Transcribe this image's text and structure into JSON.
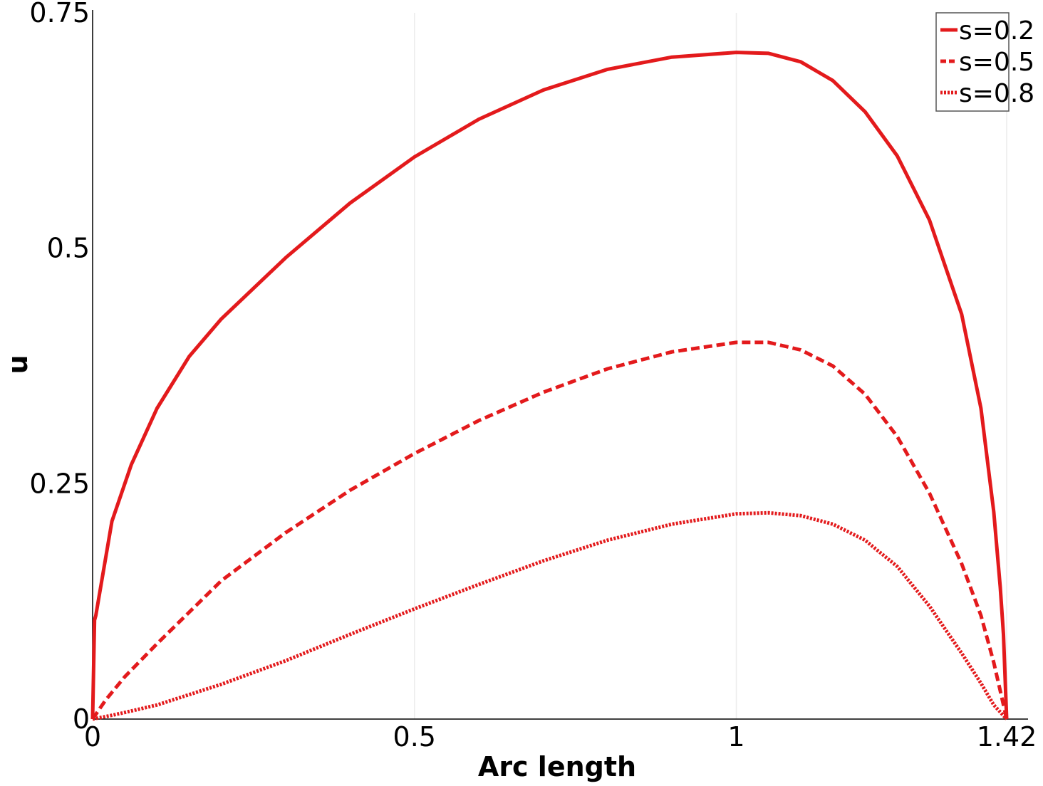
{
  "chart_data": {
    "type": "line",
    "xlabel": "Arc length",
    "ylabel": "u",
    "xlim": [
      0,
      1.42
    ],
    "ylim": [
      0,
      0.75
    ],
    "x_ticks": [
      {
        "value": 0,
        "label": "0"
      },
      {
        "value": 0.5,
        "label": "0.5"
      },
      {
        "value": 1,
        "label": "1"
      },
      {
        "value": 1.42,
        "label": "1.42"
      }
    ],
    "y_ticks": [
      {
        "value": 0,
        "label": "0"
      },
      {
        "value": 0.25,
        "label": "0.25"
      },
      {
        "value": 0.5,
        "label": "0.5"
      },
      {
        "value": 0.75,
        "label": "0.75"
      }
    ],
    "grid": "vertical-only",
    "legend_position": "top-right",
    "series": [
      {
        "name": "s=0.2",
        "style": "solid",
        "color": "#e31a1c",
        "x": [
          0,
          0.003,
          0.005,
          0.01,
          0.03,
          0.06,
          0.1,
          0.15,
          0.2,
          0.3,
          0.4,
          0.5,
          0.6,
          0.7,
          0.8,
          0.9,
          1.0,
          1.05,
          1.1,
          1.15,
          1.2,
          1.25,
          1.3,
          1.35,
          1.38,
          1.4,
          1.41,
          1.415,
          1.42
        ],
        "y": [
          0,
          0.105,
          0.11,
          0.13,
          0.21,
          0.27,
          0.33,
          0.385,
          0.425,
          0.49,
          0.548,
          0.597,
          0.637,
          0.668,
          0.69,
          0.703,
          0.708,
          0.707,
          0.698,
          0.678,
          0.645,
          0.598,
          0.53,
          0.43,
          0.33,
          0.22,
          0.14,
          0.09,
          0
        ]
      },
      {
        "name": "s=0.5",
        "style": "dashed",
        "color": "#e31a1c",
        "x": [
          0,
          0.02,
          0.05,
          0.1,
          0.2,
          0.3,
          0.4,
          0.5,
          0.6,
          0.7,
          0.8,
          0.9,
          1.0,
          1.05,
          1.1,
          1.15,
          1.2,
          1.25,
          1.3,
          1.35,
          1.38,
          1.4,
          1.41,
          1.42
        ],
        "y": [
          0,
          0.02,
          0.045,
          0.08,
          0.147,
          0.198,
          0.243,
          0.282,
          0.317,
          0.347,
          0.372,
          0.39,
          0.4,
          0.4,
          0.392,
          0.375,
          0.345,
          0.3,
          0.24,
          0.165,
          0.11,
          0.06,
          0.03,
          0
        ]
      },
      {
        "name": "s=0.8",
        "style": "dotted",
        "color": "#e31a1c",
        "x": [
          0,
          0.03,
          0.05,
          0.1,
          0.2,
          0.3,
          0.4,
          0.5,
          0.6,
          0.7,
          0.8,
          0.9,
          1.0,
          1.05,
          1.1,
          1.15,
          1.2,
          1.25,
          1.3,
          1.35,
          1.38,
          1.4,
          1.42
        ],
        "y": [
          0,
          0.004,
          0.007,
          0.015,
          0.037,
          0.062,
          0.09,
          0.117,
          0.143,
          0.168,
          0.19,
          0.207,
          0.218,
          0.219,
          0.216,
          0.207,
          0.19,
          0.162,
          0.12,
          0.07,
          0.038,
          0.015,
          0
        ]
      }
    ]
  }
}
